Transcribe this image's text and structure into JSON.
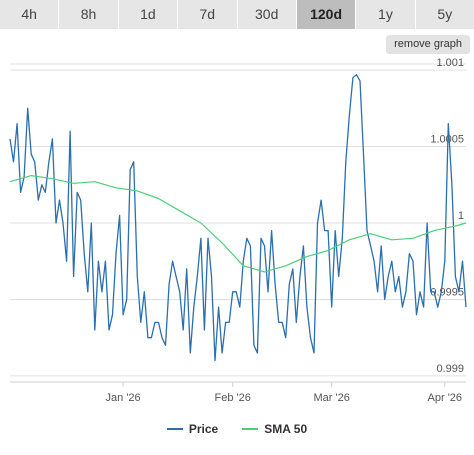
{
  "tabs": [
    {
      "label": "4h",
      "active": false
    },
    {
      "label": "8h",
      "active": false
    },
    {
      "label": "1d",
      "active": false
    },
    {
      "label": "7d",
      "active": false
    },
    {
      "label": "30d",
      "active": false
    },
    {
      "label": "120d",
      "active": true
    },
    {
      "label": "1y",
      "active": false
    },
    {
      "label": "5y",
      "active": false
    }
  ],
  "remove_graph_label": "remove graph",
  "legend": {
    "price_label": "Price",
    "sma_label": "SMA 50"
  },
  "colors": {
    "price": "#2a6fae",
    "sma": "#4ccf7a",
    "grid": "#e0e0e0"
  },
  "chart_data": {
    "type": "line",
    "y_ticks": [
      "1.001",
      "1.0005",
      "1",
      "0.9995",
      "0.999"
    ],
    "y_tick_values": [
      1.001,
      1.0005,
      1.0,
      0.9995,
      0.999
    ],
    "ylim": [
      0.99896,
      1.00104
    ],
    "x_ticks": [
      "Jan '26",
      "Feb '26",
      "Mar '26",
      "Apr '26"
    ],
    "x_tick_values": [
      32,
      63,
      91,
      123
    ],
    "xlim": [
      0,
      129
    ],
    "grid": true,
    "legend_position": "bottom-center",
    "series": [
      {
        "name": "Price",
        "x": [
          0,
          1,
          2,
          3,
          4,
          5,
          6,
          7,
          8,
          9,
          10,
          11,
          12,
          13,
          14,
          15,
          16,
          17,
          18,
          19,
          20,
          21,
          22,
          23,
          24,
          25,
          26,
          27,
          28,
          29,
          30,
          31,
          32,
          33,
          34,
          35,
          36,
          37,
          38,
          39,
          40,
          41,
          42,
          43,
          44,
          45,
          46,
          47,
          48,
          49,
          50,
          51,
          52,
          53,
          54,
          55,
          56,
          57,
          58,
          59,
          60,
          61,
          62,
          63,
          64,
          65,
          66,
          67,
          68,
          69,
          70,
          71,
          72,
          73,
          74,
          75,
          76,
          77,
          78,
          79,
          80,
          81,
          82,
          83,
          84,
          85,
          86,
          87,
          88,
          89,
          90,
          91,
          92,
          93,
          94,
          95,
          96,
          97,
          98,
          99,
          100,
          101,
          102,
          103,
          104,
          105,
          106,
          107,
          108,
          109,
          110,
          111,
          112,
          113,
          114,
          115,
          116,
          117,
          118,
          119,
          120,
          121,
          122,
          123,
          124,
          125,
          126,
          127,
          128,
          129
        ],
        "values": [
          1.00055,
          1.0004,
          1.00065,
          1.0002,
          1.0003,
          1.00075,
          1.00045,
          1.0004,
          1.00015,
          1.00025,
          1.0002,
          1.0004,
          1.00055,
          1.0,
          1.00015,
          1.0,
          0.99975,
          1.0006,
          0.99965,
          1.0002,
          1.00015,
          0.9998,
          0.99955,
          1.0,
          0.9993,
          0.99975,
          0.99955,
          0.99975,
          0.9993,
          0.9994,
          0.9998,
          1.00005,
          0.9994,
          0.9995,
          1.00035,
          1.0004,
          0.99965,
          0.99935,
          0.99955,
          0.99925,
          0.99925,
          0.99935,
          0.99935,
          0.99925,
          0.9992,
          0.9996,
          0.99975,
          0.99965,
          0.99955,
          0.9993,
          0.9997,
          0.99915,
          0.99945,
          0.99965,
          0.9999,
          0.9993,
          0.9999,
          0.99965,
          0.9991,
          0.99945,
          0.99915,
          0.99935,
          0.99935,
          0.99955,
          0.99955,
          0.99945,
          0.99975,
          0.9999,
          0.99985,
          0.9992,
          0.99915,
          0.9999,
          0.99985,
          0.99955,
          0.99995,
          0.9996,
          0.99935,
          0.99935,
          0.99925,
          0.9996,
          0.9997,
          0.99935,
          0.99965,
          0.99985,
          0.99945,
          0.99925,
          0.99915,
          1.0,
          1.00015,
          0.99995,
          0.99995,
          0.99945,
          0.99995,
          0.99965,
          0.9999,
          1.0004,
          1.0007,
          1.00095,
          1.00097,
          1.00093,
          1.00045,
          0.99995,
          0.99985,
          0.99975,
          0.99955,
          0.99985,
          0.9995,
          0.99965,
          0.99975,
          0.99955,
          0.99965,
          0.99945,
          0.99955,
          0.9998,
          0.99975,
          0.9994,
          0.99955,
          0.99945,
          1.0,
          0.99955,
          0.99955,
          0.99945,
          0.99955,
          0.99975,
          1.00065,
          1.00025,
          0.99965,
          0.99955,
          0.99975,
          0.99945
        ]
      },
      {
        "name": "SMA 50",
        "x": [
          0,
          6,
          12,
          18,
          24,
          30,
          36,
          42,
          48,
          54,
          60,
          66,
          72,
          78,
          84,
          90,
          96,
          102,
          108,
          114,
          120,
          126,
          129
        ],
        "values": [
          1.00027,
          1.00031,
          1.00029,
          1.00026,
          1.00027,
          1.00023,
          1.00021,
          1.00016,
          1.00008,
          1.0,
          0.99987,
          0.99972,
          0.99968,
          0.99972,
          0.99978,
          0.99982,
          0.99989,
          0.99993,
          0.99989,
          0.9999,
          0.99995,
          0.99998,
          1.0
        ]
      }
    ]
  }
}
